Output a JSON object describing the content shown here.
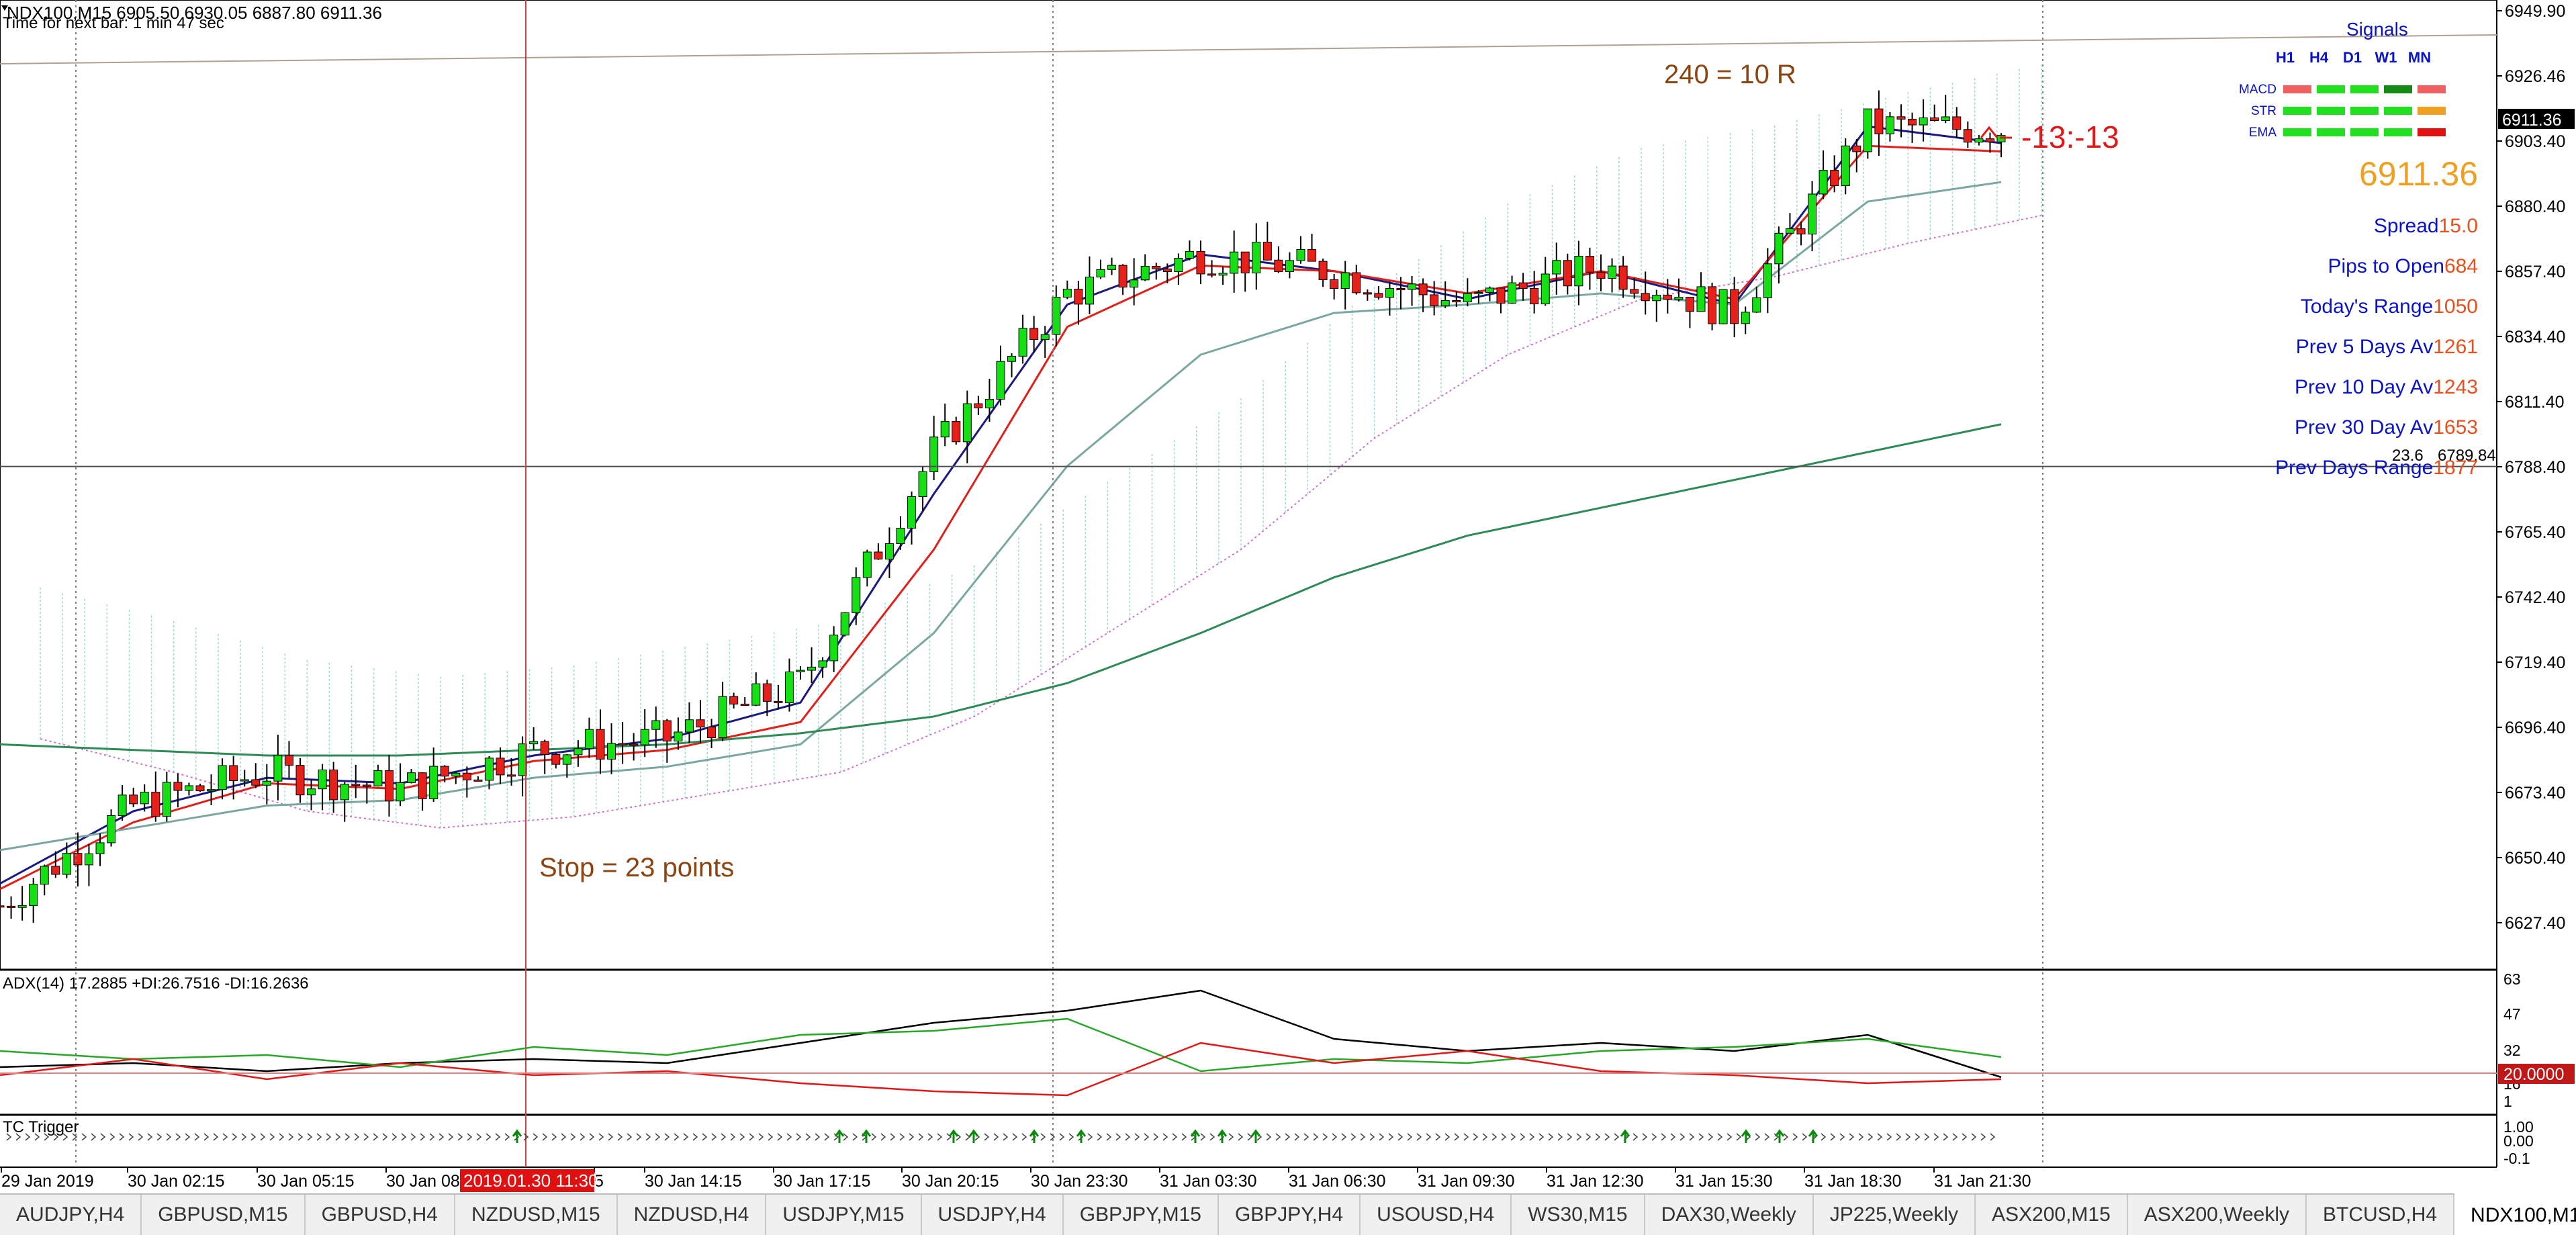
{
  "window": {
    "symbol_header": "NDX100,M15  6905.50 6930.05 6887.80 6911.36",
    "timer": "Time for next bar: 1 min 47 sec"
  },
  "price_axis": {
    "labels": [
      "6949.90",
      "6926.46",
      "6903.40",
      "6880.40",
      "6857.40",
      "6834.40",
      "6811.40",
      "6788.40",
      "6765.40",
      "6742.40",
      "6719.40",
      "6696.40",
      "6673.40",
      "6650.40",
      "6627.40"
    ],
    "current_price_badge": "6911.36",
    "hline_level_label": "6789.84",
    "hline_fib_label": "23.6"
  },
  "annotations": {
    "target": "240 = 10 R",
    "stop": "Stop = 23 points",
    "trade_status": "-13:-13"
  },
  "signals": {
    "title": "Signals",
    "timeframes": [
      "H1",
      "H4",
      "D1",
      "W1",
      "MN"
    ],
    "rows": [
      {
        "name": "MACD",
        "colors": [
          "#f06060",
          "#20e020",
          "#20e020",
          "#138a13",
          "#f06060"
        ]
      },
      {
        "name": "STR",
        "colors": [
          "#20e020",
          "#20e020",
          "#20e020",
          "#20e020",
          "#f0a020"
        ]
      },
      {
        "name": "EMA",
        "colors": [
          "#20e020",
          "#20e020",
          "#20e020",
          "#20e020",
          "#e01010"
        ]
      }
    ]
  },
  "info": {
    "big_price": "6911.36",
    "lines": [
      {
        "label": "Spread",
        "value": "15.0"
      },
      {
        "label": "Pips to Open",
        "value": "684"
      },
      {
        "label": "Today's Range",
        "value": "1050"
      },
      {
        "label": "Prev 5 Days Av",
        "value": "1261"
      },
      {
        "label": "Prev 10 Day Av",
        "value": "1243"
      },
      {
        "label": "Prev 30 Day Av",
        "value": "1653"
      },
      {
        "label": "Prev Days Range",
        "value": "1877"
      }
    ]
  },
  "adx_panel": {
    "title": "ADX(14) 17.2885 +DI:26.7516 -DI:16.2636",
    "axis_labels": [
      "63",
      "47",
      "32",
      "16",
      "1"
    ],
    "level_badge": "20.0000"
  },
  "tc_panel": {
    "title": "TC Trigger",
    "axis_labels": [
      "1.00",
      "0.00",
      "-0.1"
    ]
  },
  "time_axis": {
    "labels": [
      "29 Jan 2019",
      "30 Jan 02:15",
      "30 Jan 05:15",
      "30 Jan 08:",
      "5",
      "30 Jan 14:15",
      "30 Jan 17:15",
      "30 Jan 20:15",
      "30 Jan 23:30",
      "31 Jan 03:30",
      "31 Jan 06:30",
      "31 Jan 09:30",
      "31 Jan 12:30",
      "31 Jan 15:30",
      "31 Jan 18:30",
      "31 Jan 21:30"
    ],
    "cursor_label": "2019.01.30 11:30"
  },
  "tabs": [
    "AUDJPY,H4",
    "GBPUSD,M15",
    "GBPUSD,H4",
    "NZDUSD,M15",
    "NZDUSD,H4",
    "USDJPY,M15",
    "USDJPY,H4",
    "GBPJPY,M15",
    "GBPJPY,H4",
    "USOUSD,H4",
    "WS30,M15",
    "DAX30,Weekly",
    "JP225,Weekly",
    "ASX200,M15",
    "ASX200,Weekly",
    "BTCUSD,H4",
    "NDX100,M15"
  ],
  "active_tab": "NDX100,M15",
  "chart_data": {
    "type": "candlestick",
    "symbol": "NDX100",
    "timeframe": "M15",
    "ylim": [
      6610,
      6955
    ],
    "x": [
      "29 Jan 2019",
      "30 Jan 02:15",
      "30 Jan 05:15",
      "30 Jan 08:15",
      "30 Jan 11:15",
      "30 Jan 14:15",
      "30 Jan 17:15",
      "30 Jan 20:15",
      "30 Jan 23:30",
      "31 Jan 03:30",
      "31 Jan 06:30",
      "31 Jan 09:30",
      "31 Jan 12:30",
      "31 Jan 15:30",
      "31 Jan 18:30",
      "31 Jan 21:30"
    ],
    "close": [
      6632,
      6668,
      6680,
      6674,
      6688,
      6692,
      6712,
      6795,
      6852,
      6866,
      6860,
      6848,
      6862,
      6845,
      6912,
      6911
    ],
    "series": [
      {
        "name": "EMA fast",
        "color": "#1a1a80",
        "values": [
          6640,
          6666,
          6678,
          6676,
          6686,
          6692,
          6705,
          6780,
          6848,
          6866,
          6860,
          6850,
          6860,
          6848,
          6912,
          6906
        ]
      },
      {
        "name": "EMA mid",
        "color": "#e0201a",
        "values": [
          6638,
          6662,
          6676,
          6674,
          6684,
          6688,
          6698,
          6760,
          6840,
          6862,
          6860,
          6852,
          6860,
          6850,
          6905,
          6903
        ]
      },
      {
        "name": "EMA slow",
        "color": "#7aa8a0",
        "values": [
          6652,
          6660,
          6668,
          6670,
          6678,
          6682,
          6690,
          6730,
          6790,
          6830,
          6845,
          6848,
          6852,
          6848,
          6885,
          6892
        ]
      },
      {
        "name": "MA 200",
        "color": "#2e8b57",
        "values": [
          6690,
          6688,
          6686,
          6686,
          6688,
          6690,
          6694,
          6700,
          6712,
          6730,
          6750,
          6765,
          6775,
          6785,
          6795,
          6805
        ]
      }
    ],
    "hline": 6789.84,
    "adx": {
      "adx": [
        22,
        24,
        20,
        24,
        26,
        24,
        34,
        44,
        50,
        60,
        36,
        30,
        34,
        30,
        38,
        17
      ],
      "plus_di": [
        30,
        26,
        28,
        22,
        32,
        28,
        38,
        40,
        46,
        20,
        26,
        24,
        30,
        32,
        36,
        27
      ],
      "minus_di": [
        18,
        26,
        16,
        24,
        18,
        20,
        14,
        10,
        8,
        34,
        24,
        30,
        20,
        18,
        14,
        16
      ]
    }
  }
}
